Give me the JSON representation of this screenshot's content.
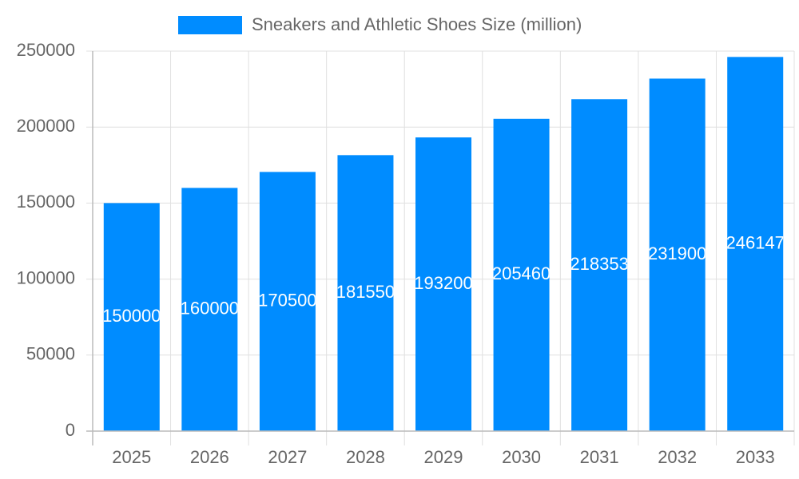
{
  "chart_data": {
    "type": "bar",
    "categories": [
      "2025",
      "2026",
      "2027",
      "2028",
      "2029",
      "2030",
      "2031",
      "2032",
      "2033"
    ],
    "series": [
      {
        "name": "Sneakers and Athletic Shoes Size (million)",
        "color": "#008cff",
        "values": [
          150000,
          160000,
          170500,
          181550,
          193200,
          205460,
          218353,
          231900,
          246147
        ]
      }
    ],
    "ylim": [
      0,
      250000
    ],
    "yticks": [
      0,
      50000,
      100000,
      150000,
      200000,
      250000
    ],
    "grid": true,
    "legend": "top"
  }
}
